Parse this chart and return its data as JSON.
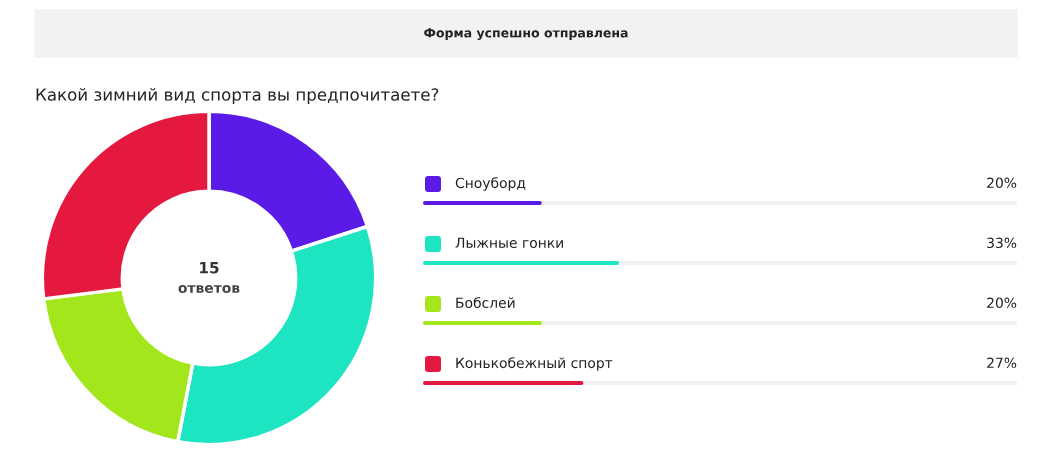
{
  "chart_data": {
    "type": "donut",
    "title": "Какой зимний вид спорта вы предпочитаете?",
    "categories": [
      "Сноуборд",
      "Лыжные гонки",
      "Бобслей",
      "Конькобежный спорт"
    ],
    "values": [
      20,
      33,
      20,
      27
    ],
    "value_labels": [
      "20%",
      "33%",
      "20%",
      "27%"
    ],
    "colors": [
      "#5b1be6",
      "#1de5c2",
      "#a3e61b",
      "#e5193f"
    ],
    "legend": "right",
    "annotations": [
      "Форма успешно отправлена",
      "15",
      "ответов"
    ]
  }
}
